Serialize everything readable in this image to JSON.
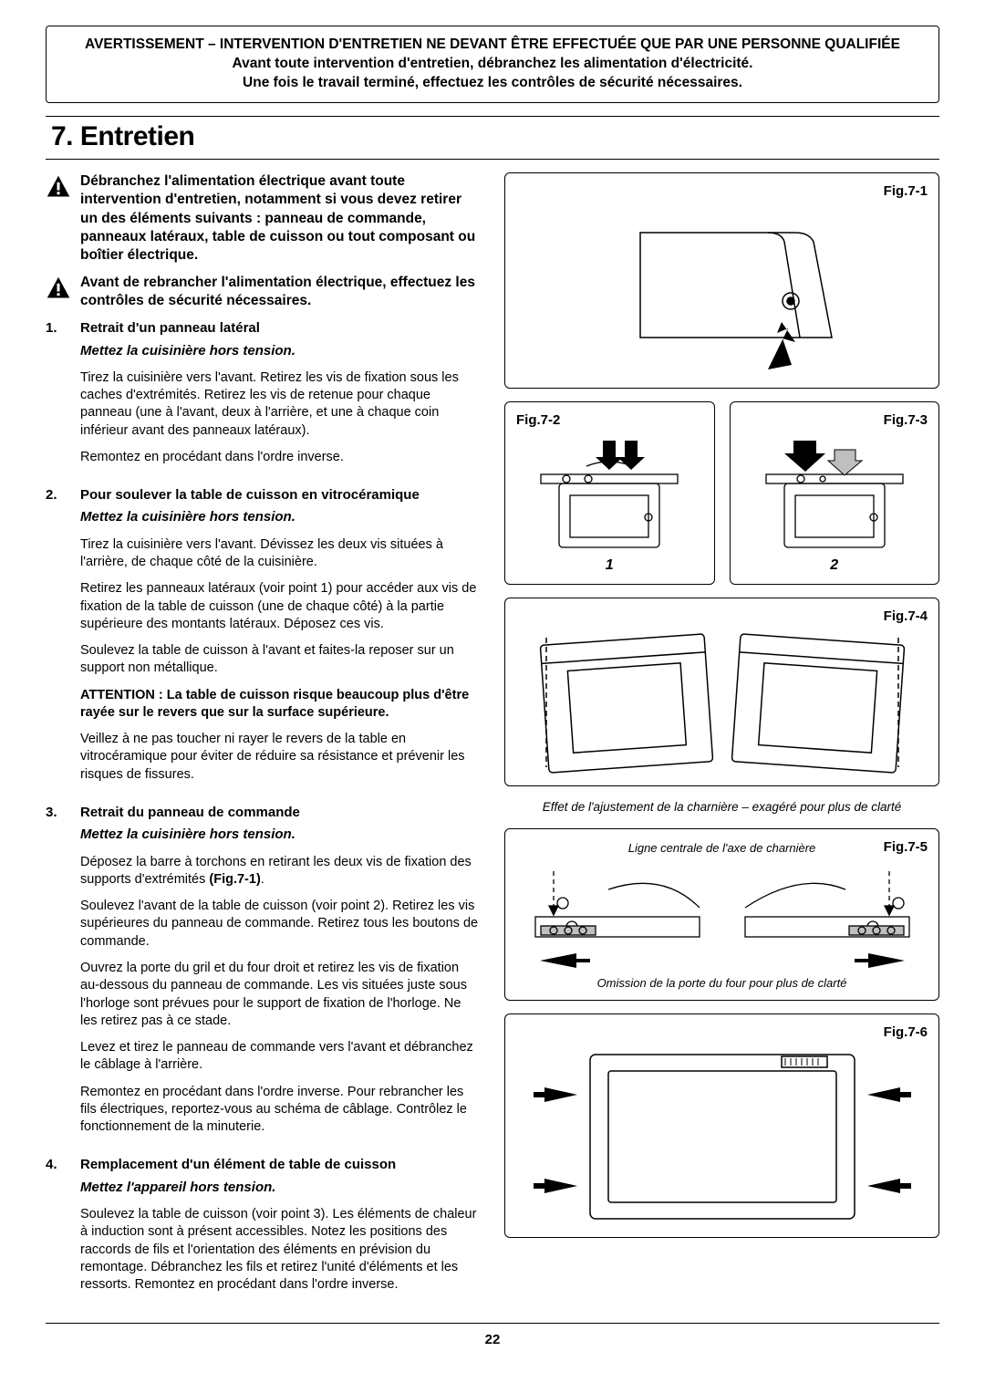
{
  "warning_box": {
    "line1": "AVERTISSEMENT – INTERVENTION D'ENTRETIEN NE DEVANT ÊTRE EFFECTUÉE QUE PAR UNE PERSONNE QUALIFIÉE",
    "line2": "Avant toute intervention d'entretien, débranchez les alimentation d'électricité.",
    "line3": "Une fois le travail terminé, effectuez les contrôles de sécurité nécessaires."
  },
  "section_title": "7. Entretien",
  "warn1": "Débranchez l'alimentation électrique avant toute intervention d'entretien, notamment si vous devez retirer un des éléments suivants : panneau de commande, panneaux latéraux, table de cuisson ou tout composant ou boîtier électrique.",
  "warn2": "Avant de rebrancher l'alimentation électrique, effectuez les contrôles de sécurité nécessaires.",
  "items": [
    {
      "num": "1.",
      "head": "Retrait d'un panneau latéral",
      "sub": "Mettez la cuisinière hors tension.",
      "paras": [
        "Tirez la cuisinière vers l'avant. Retirez les vis de fixation sous les caches d'extrémités. Retirez les vis de retenue pour chaque panneau (une à l'avant, deux à l'arrière, et une à chaque coin inférieur avant des panneaux latéraux).",
        "Remontez en procédant dans l'ordre inverse."
      ]
    },
    {
      "num": "2.",
      "head": "Pour soulever la table de cuisson en vitrocéramique",
      "sub": "Mettez la cuisinière hors tension.",
      "paras": [
        "Tirez la cuisinière vers l'avant. Dévissez les deux vis situées à l'arrière, de chaque côté de la cuisinière.",
        "Retirez les panneaux latéraux (voir point 1) pour accéder aux vis de fixation de la table de cuisson (une de chaque côté) à la partie supérieure des montants latéraux. Déposez ces vis.",
        "Soulevez la table de cuisson à l'avant et faites-la reposer sur un support non métallique.",
        "<span class=\"attn\">ATTENTION : La table de cuisson risque beaucoup plus d'être rayée sur le revers que sur la surface supérieure.</span>",
        "Veillez à ne pas toucher ni rayer le revers de la table en vitrocéramique pour éviter de réduire sa résistance et prévenir les risques de fissures."
      ]
    },
    {
      "num": "3.",
      "head": "Retrait du panneau de commande",
      "sub": "Mettez la cuisinière hors tension.",
      "paras": [
        "Déposez la barre à torchons en retirant les deux vis de fixation des supports d'extrémités <b>(Fig.7-1)</b>.",
        "Soulevez l'avant de la table de cuisson (voir point 2). Retirez les vis supérieures du panneau de commande. Retirez tous les boutons de commande.",
        "Ouvrez la porte du gril et du four droit et retirez les vis de fixation au-dessous du panneau de commande. Les vis situées juste sous l'horloge sont prévues pour le support de fixation de l'horloge. Ne les retirez pas à ce stade.",
        "Levez et tirez le panneau de commande vers l'avant et débranchez le câblage à l'arrière.",
        "Remontez en procédant dans l'ordre inverse. Pour rebrancher les fils électriques, reportez-vous au schéma de câblage. Contrôlez le fonctionnement de la minuterie."
      ]
    },
    {
      "num": "4.",
      "head": "Remplacement d'un élément de table de cuisson",
      "sub": "Mettez l'appareil hors tension.",
      "paras": [
        "Soulevez la table de cuisson (voir point 3). Les éléments de chaleur à induction sont à présent accessibles. Notez les positions des raccords de fils et l'orientation des éléments en prévision du remontage. Débranchez les fils et retirez l'unité d'éléments et les ressorts. Remontez en procédant dans l'ordre inverse."
      ]
    }
  ],
  "figs": {
    "f1": {
      "label": "Fig.7-1",
      "bracket_color": "#000",
      "screw_color": "#000",
      "arrow_color": "#000"
    },
    "f2": {
      "label": "Fig.7-2",
      "panel_num": "1"
    },
    "f3": {
      "label": "Fig.7-3",
      "panel_num": "2"
    },
    "f4": {
      "label": "Fig.7-4"
    },
    "caption4": "Effet de l'ajustement de la charnière – exagéré pour plus de clarté",
    "f5": {
      "label": "Fig.7-5",
      "top_note": "Ligne centrale de l'axe de charnière",
      "bottom_note": "Omission de la porte du four pour plus de clarté"
    },
    "f6": {
      "label": "Fig.7-6"
    }
  },
  "page_number": "22",
  "colors": {
    "line": "#000000",
    "shade": "#bfbfbf",
    "bg": "#ffffff"
  }
}
